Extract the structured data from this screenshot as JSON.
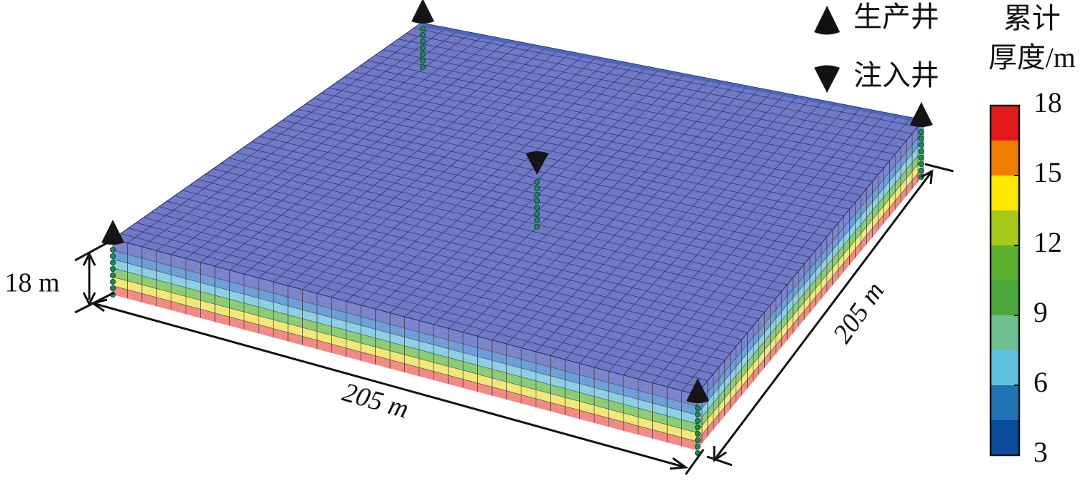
{
  "legend": {
    "producer": "生产井",
    "injector": "注入井"
  },
  "dimensions": {
    "thickness": "18 m",
    "length": "205 m",
    "width": "205 m"
  },
  "colorbar": {
    "title": [
      "累计",
      "厚度/m"
    ],
    "lim": [
      3,
      18
    ],
    "ticks": [
      3,
      6,
      9,
      12,
      15,
      18
    ],
    "colors": [
      "#0a4c9c",
      "#2171b5",
      "#5cc2df",
      "#6cbf8e",
      "#4aa83a",
      "#5bb12f",
      "#a8c81a",
      "#fde800",
      "#ef7d00",
      "#e31a1c"
    ]
  }
}
